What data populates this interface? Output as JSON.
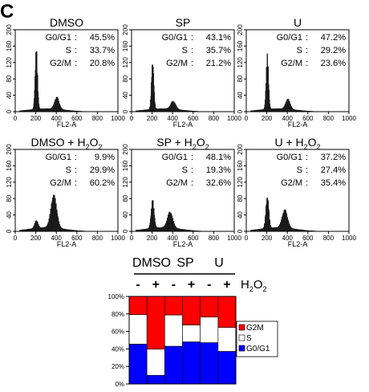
{
  "panel_label": "C",
  "histogram_axes": {
    "xlabel": "FL2-A",
    "xticks": [
      "0",
      "200",
      "400",
      "600",
      "800",
      "1000"
    ],
    "yticks": [
      "0",
      "40",
      "80",
      "120",
      "160",
      "200"
    ]
  },
  "chart_data": [
    {
      "type": "histogram",
      "title": "DMSO",
      "xlim": [
        0,
        1000
      ],
      "ylim": [
        0,
        200
      ],
      "stats": [
        {
          "label": "G0/G1",
          "value": "45.5%"
        },
        {
          "label": "S",
          "value": "33.7%"
        },
        {
          "label": "G2/M",
          "value": "20.8%"
        }
      ],
      "peaks": [
        {
          "x": 200,
          "y": 150,
          "w": 11
        },
        {
          "x": 400,
          "y": 30,
          "w": 22
        }
      ],
      "base": 8
    },
    {
      "type": "histogram",
      "title": "SP",
      "xlim": [
        0,
        1000
      ],
      "ylim": [
        0,
        200
      ],
      "stats": [
        {
          "label": "G0/G1",
          "value": "43.1%"
        },
        {
          "label": "S",
          "value": "35.7%"
        },
        {
          "label": "G2/M",
          "value": "21.2%"
        }
      ],
      "peaks": [
        {
          "x": 200,
          "y": 120,
          "w": 11
        },
        {
          "x": 400,
          "y": 20,
          "w": 24
        }
      ],
      "base": 8
    },
    {
      "type": "histogram",
      "title": "U",
      "xlim": [
        0,
        1000
      ],
      "ylim": [
        0,
        200
      ],
      "stats": [
        {
          "label": "G0/G1",
          "value": "47.2%"
        },
        {
          "label": "S",
          "value": "29.2%"
        },
        {
          "label": "G2/M",
          "value": "23.6%"
        }
      ],
      "peaks": [
        {
          "x": 200,
          "y": 135,
          "w": 11
        },
        {
          "x": 400,
          "y": 25,
          "w": 22
        }
      ],
      "base": 8
    },
    {
      "type": "histogram",
      "title": "DMSO + H2O2",
      "xlim": [
        0,
        1000
      ],
      "ylim": [
        0,
        200
      ],
      "stats": [
        {
          "label": "G0/G1",
          "value": "9.9%"
        },
        {
          "label": "S",
          "value": "29.9%"
        },
        {
          "label": "G2/M",
          "value": "60.2%"
        }
      ],
      "peaks": [
        {
          "x": 200,
          "y": 20,
          "w": 16
        },
        {
          "x": 370,
          "y": 82,
          "w": 28
        }
      ],
      "base": 10
    },
    {
      "type": "histogram",
      "title": "SP + H2O2",
      "xlim": [
        0,
        1000
      ],
      "ylim": [
        0,
        200
      ],
      "stats": [
        {
          "label": "G0/G1",
          "value": "48.1%"
        },
        {
          "label": "S",
          "value": "19.3%"
        },
        {
          "label": "G2/M",
          "value": "32.6%"
        }
      ],
      "peaks": [
        {
          "x": 200,
          "y": 70,
          "w": 14
        },
        {
          "x": 370,
          "y": 40,
          "w": 26
        }
      ],
      "base": 10
    },
    {
      "type": "histogram",
      "title": "U + H2O2",
      "xlim": [
        0,
        1000
      ],
      "ylim": [
        0,
        200
      ],
      "stats": [
        {
          "label": "G0/G1",
          "value": "37.2%"
        },
        {
          "label": "S",
          "value": "27.4%"
        },
        {
          "label": "G2/M",
          "value": "35.4%"
        }
      ],
      "peaks": [
        {
          "x": 200,
          "y": 80,
          "w": 14
        },
        {
          "x": 370,
          "y": 45,
          "w": 26
        }
      ],
      "base": 10
    },
    {
      "type": "bar",
      "stacked": true,
      "normalized": true,
      "groups": [
        "DMSO",
        "SP",
        "U"
      ],
      "treatment_label": "H2O2",
      "categories": [
        "-",
        "+",
        "-",
        "+",
        "-",
        "+"
      ],
      "ylim": [
        0,
        100
      ],
      "yticks": [
        "0%",
        "20%",
        "40%",
        "60%",
        "80%",
        "100%"
      ],
      "legend_position": "right",
      "series": [
        {
          "name": "G0/G1",
          "color": "#0000ff",
          "values": [
            45.5,
            9.9,
            43.1,
            48.1,
            47.2,
            37.2
          ]
        },
        {
          "name": "S",
          "color": "#ffffff",
          "values": [
            33.7,
            29.9,
            35.7,
            19.3,
            29.2,
            27.4
          ]
        },
        {
          "name": "G2M",
          "color": "#ff0000",
          "values": [
            20.8,
            60.2,
            21.2,
            32.6,
            23.6,
            35.4
          ]
        }
      ]
    }
  ]
}
